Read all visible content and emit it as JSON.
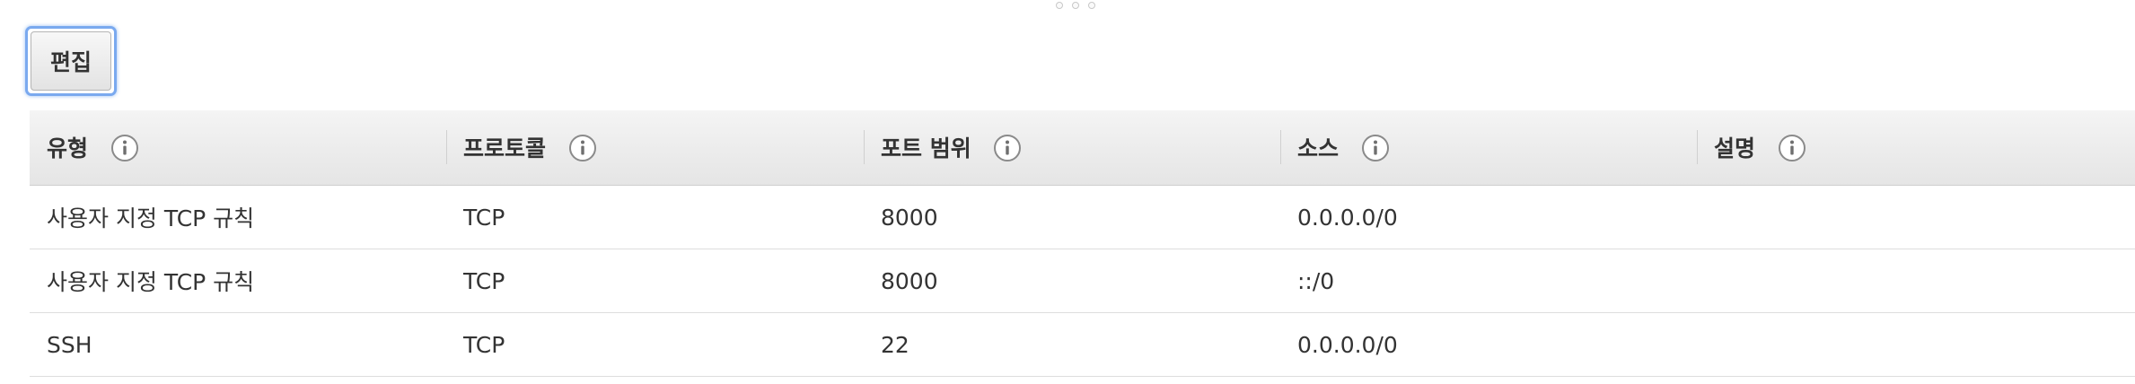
{
  "toolbar": {
    "edit_label": "편집"
  },
  "table": {
    "headers": [
      {
        "label": "유형",
        "info_icon": "info-icon"
      },
      {
        "label": "프로토콜",
        "info_icon": "info-icon"
      },
      {
        "label": "포트 범위",
        "info_icon": "info-icon"
      },
      {
        "label": "소스",
        "info_icon": "info-icon"
      },
      {
        "label": "설명",
        "info_icon": "info-icon"
      }
    ],
    "rows": [
      {
        "type": "사용자 지정 TCP 규칙",
        "protocol": "TCP",
        "port_range": "8000",
        "source": "0.0.0.0/0",
        "description": ""
      },
      {
        "type": "사용자 지정 TCP 규칙",
        "protocol": "TCP",
        "port_range": "8000",
        "source": "::/0",
        "description": ""
      },
      {
        "type": "SSH",
        "protocol": "TCP",
        "port_range": "22",
        "source": "0.0.0.0/0",
        "description": ""
      }
    ]
  },
  "colors": {
    "focus_ring": "#7aa9ef",
    "header_bg": "#eaeaea",
    "text": "#333333",
    "row_border": "#dddddd"
  }
}
